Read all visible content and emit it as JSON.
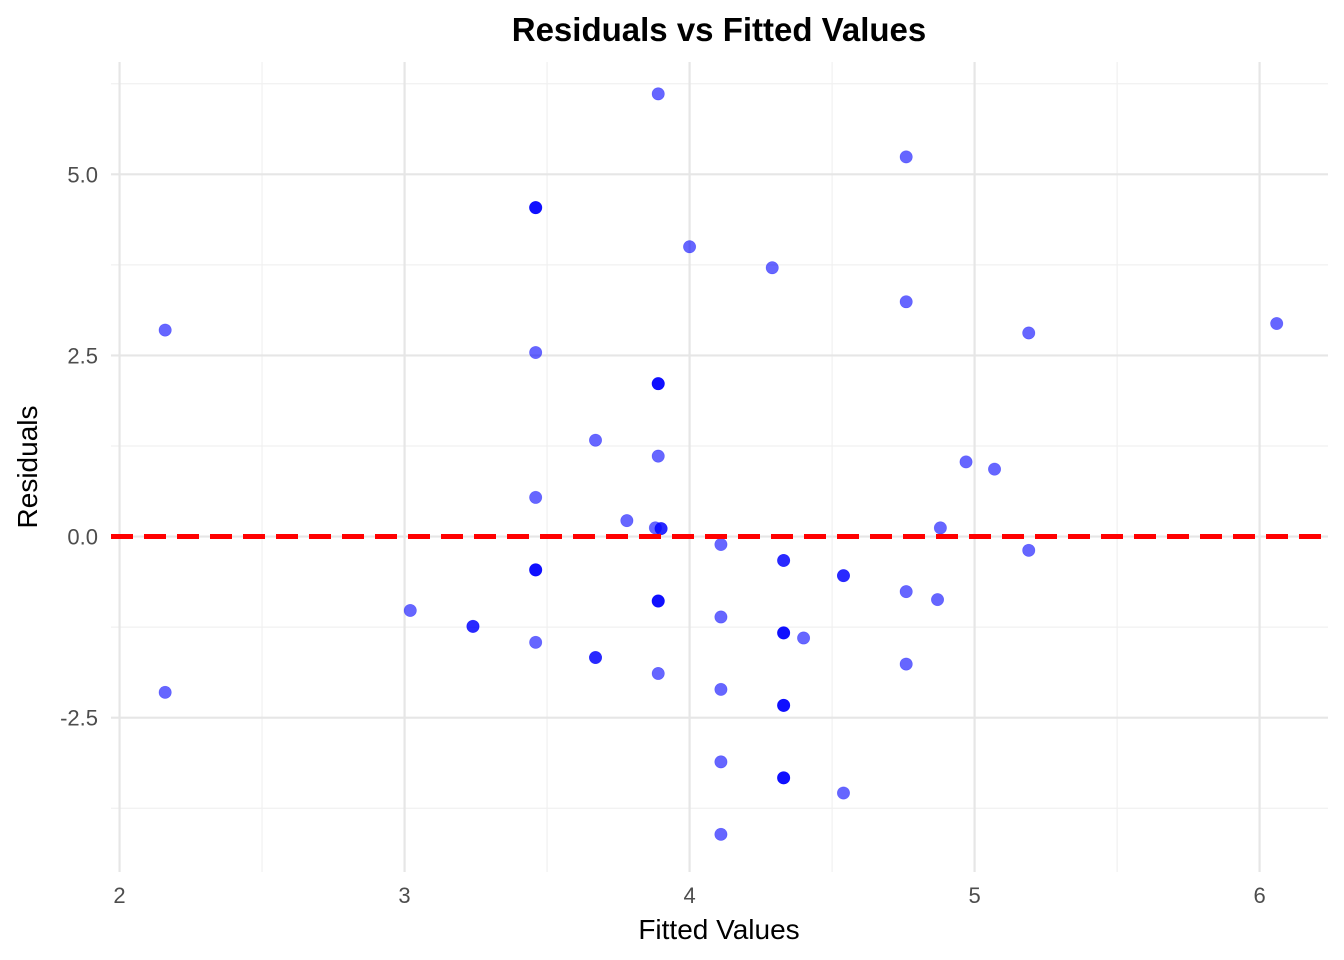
{
  "chart_data": {
    "type": "scatter",
    "title": "Residuals vs Fitted Values",
    "xlabel": "Fitted Values",
    "ylabel": "Residuals",
    "xlim": [
      1.97,
      6.24
    ],
    "ylim": [
      -4.63,
      6.55
    ],
    "x_ticks": [
      2,
      3,
      4,
      5,
      6
    ],
    "x_tick_labels": [
      "2",
      "3",
      "4",
      "5",
      "6"
    ],
    "y_ticks": [
      -2.5,
      0,
      2.5,
      5
    ],
    "y_tick_labels": [
      "-2.5",
      "0.0",
      "2.5",
      "5.0"
    ],
    "grid": true,
    "point_color": "#0000ff",
    "point_opacity": 0.6,
    "reference_line": {
      "y": 0,
      "color": "#ff0000",
      "style": "dashed"
    },
    "points": [
      {
        "x": 2.16,
        "y": 2.85
      },
      {
        "x": 2.16,
        "y": -2.15
      },
      {
        "x": 3.02,
        "y": -1.02
      },
      {
        "x": 3.24,
        "y": -1.24
      },
      {
        "x": 3.24,
        "y": -1.24
      },
      {
        "x": 3.46,
        "y": 4.54
      },
      {
        "x": 3.46,
        "y": 4.54
      },
      {
        "x": 3.46,
        "y": 4.54
      },
      {
        "x": 3.46,
        "y": 2.54
      },
      {
        "x": 3.46,
        "y": 0.54
      },
      {
        "x": 3.46,
        "y": -0.46
      },
      {
        "x": 3.46,
        "y": -0.46
      },
      {
        "x": 3.46,
        "y": -0.46
      },
      {
        "x": 3.46,
        "y": -1.46
      },
      {
        "x": 3.67,
        "y": 1.33
      },
      {
        "x": 3.67,
        "y": -1.67
      },
      {
        "x": 3.67,
        "y": -1.67
      },
      {
        "x": 3.78,
        "y": 0.22
      },
      {
        "x": 3.89,
        "y": 6.11
      },
      {
        "x": 3.89,
        "y": 2.11
      },
      {
        "x": 3.89,
        "y": 2.11
      },
      {
        "x": 3.89,
        "y": 2.11
      },
      {
        "x": 3.89,
        "y": 1.11
      },
      {
        "x": 3.88,
        "y": 0.12
      },
      {
        "x": 3.9,
        "y": 0.11
      },
      {
        "x": 3.9,
        "y": 0.11
      },
      {
        "x": 3.89,
        "y": -0.89
      },
      {
        "x": 3.89,
        "y": -0.89
      },
      {
        "x": 3.89,
        "y": -0.89
      },
      {
        "x": 3.89,
        "y": -1.89
      },
      {
        "x": 4.0,
        "y": 4.0
      },
      {
        "x": 4.11,
        "y": -0.11
      },
      {
        "x": 4.11,
        "y": -1.11
      },
      {
        "x": 4.11,
        "y": -2.11
      },
      {
        "x": 4.11,
        "y": -3.11
      },
      {
        "x": 4.11,
        "y": -4.11
      },
      {
        "x": 4.29,
        "y": 3.71
      },
      {
        "x": 4.33,
        "y": -0.33
      },
      {
        "x": 4.33,
        "y": -0.33
      },
      {
        "x": 4.33,
        "y": -1.33
      },
      {
        "x": 4.33,
        "y": -1.33
      },
      {
        "x": 4.33,
        "y": -1.33
      },
      {
        "x": 4.33,
        "y": -2.33
      },
      {
        "x": 4.33,
        "y": -2.33
      },
      {
        "x": 4.33,
        "y": -2.33
      },
      {
        "x": 4.33,
        "y": -3.33
      },
      {
        "x": 4.33,
        "y": -3.33
      },
      {
        "x": 4.33,
        "y": -3.33
      },
      {
        "x": 4.4,
        "y": -1.4
      },
      {
        "x": 4.54,
        "y": -0.54
      },
      {
        "x": 4.54,
        "y": -0.54
      },
      {
        "x": 4.54,
        "y": -3.54
      },
      {
        "x": 4.76,
        "y": 5.24
      },
      {
        "x": 4.76,
        "y": 3.24
      },
      {
        "x": 4.76,
        "y": -0.76
      },
      {
        "x": 4.76,
        "y": -1.76
      },
      {
        "x": 4.87,
        "y": -0.87
      },
      {
        "x": 4.88,
        "y": 0.12
      },
      {
        "x": 4.97,
        "y": 1.03
      },
      {
        "x": 5.07,
        "y": 0.93
      },
      {
        "x": 5.19,
        "y": 2.81
      },
      {
        "x": 5.19,
        "y": -0.19
      },
      {
        "x": 6.06,
        "y": 2.94
      }
    ]
  }
}
